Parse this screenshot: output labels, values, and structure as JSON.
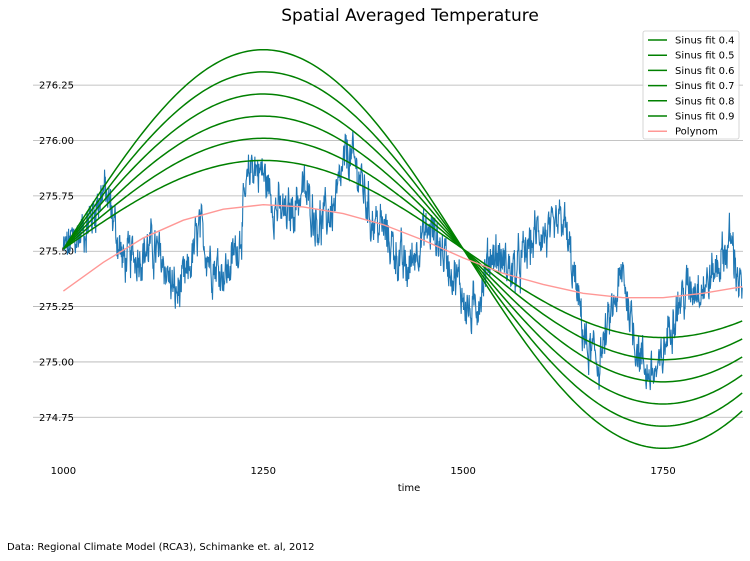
{
  "chart_data": {
    "type": "line",
    "title": "Spatial Averaged Temperature",
    "xlabel": "time",
    "ylabel": "",
    "xlim": [
      962,
      1850
    ],
    "ylim": [
      274.53,
      276.49
    ],
    "xticks": [
      1000,
      1250,
      1500,
      1750
    ],
    "yticks": [
      274.75,
      275.0,
      275.25,
      275.5,
      275.75,
      276.0,
      276.25
    ],
    "ytick_labels": [
      "274.75",
      "275.00",
      "275.25",
      "275.50",
      "275.75",
      "276.00",
      "276.25"
    ],
    "grid": "horizontal",
    "legend_position": "top-right",
    "colors": {
      "data": "#1f77b4",
      "sinus": "#008000",
      "polynom": "#ff9896",
      "grid": "#b0b0b0"
    },
    "observed": {
      "x_range": [
        1000,
        1849
      ],
      "keypoints": [
        [
          1000,
          275.5
        ],
        [
          1030,
          275.62
        ],
        [
          1050,
          275.78
        ],
        [
          1060,
          275.68
        ],
        [
          1075,
          275.45
        ],
        [
          1090,
          275.48
        ],
        [
          1110,
          275.52
        ],
        [
          1125,
          275.45
        ],
        [
          1140,
          275.3
        ],
        [
          1155,
          275.38
        ],
        [
          1170,
          275.6
        ],
        [
          1185,
          275.45
        ],
        [
          1205,
          275.4
        ],
        [
          1220,
          275.55
        ],
        [
          1235,
          275.9
        ],
        [
          1250,
          275.85
        ],
        [
          1265,
          275.7
        ],
        [
          1280,
          275.65
        ],
        [
          1300,
          275.78
        ],
        [
          1320,
          275.62
        ],
        [
          1340,
          275.7
        ],
        [
          1355,
          275.95
        ],
        [
          1370,
          275.85
        ],
        [
          1385,
          275.65
        ],
        [
          1400,
          275.6
        ],
        [
          1415,
          275.5
        ],
        [
          1430,
          275.4
        ],
        [
          1445,
          275.55
        ],
        [
          1460,
          275.6
        ],
        [
          1475,
          275.5
        ],
        [
          1495,
          275.35
        ],
        [
          1510,
          275.2
        ],
        [
          1520,
          275.3
        ],
        [
          1535,
          275.5
        ],
        [
          1550,
          275.45
        ],
        [
          1565,
          275.4
        ],
        [
          1580,
          275.5
        ],
        [
          1595,
          275.6
        ],
        [
          1610,
          275.55
        ],
        [
          1625,
          275.65
        ],
        [
          1640,
          275.35
        ],
        [
          1655,
          275.05
        ],
        [
          1670,
          275.0
        ],
        [
          1685,
          275.2
        ],
        [
          1700,
          275.4
        ],
        [
          1715,
          275.1
        ],
        [
          1730,
          274.95
        ],
        [
          1745,
          274.95
        ],
        [
          1760,
          275.2
        ],
        [
          1775,
          275.3
        ],
        [
          1790,
          275.35
        ],
        [
          1805,
          275.35
        ],
        [
          1820,
          275.45
        ],
        [
          1835,
          275.55
        ],
        [
          1849,
          275.3
        ]
      ]
    },
    "series": [
      {
        "name": "Sinus fit 0.4",
        "amplitude": 0.4,
        "center": 275.51,
        "x_start": 1000,
        "x_end": 1849
      },
      {
        "name": "Sinus fit 0.5",
        "amplitude": 0.5,
        "center": 275.51,
        "x_start": 1000,
        "x_end": 1849
      },
      {
        "name": "Sinus fit 0.6",
        "amplitude": 0.6,
        "center": 275.51,
        "x_start": 1000,
        "x_end": 1849
      },
      {
        "name": "Sinus fit 0.7",
        "amplitude": 0.7,
        "center": 275.51,
        "x_start": 1000,
        "x_end": 1849
      },
      {
        "name": "Sinus fit 0.8",
        "amplitude": 0.8,
        "center": 275.51,
        "x_start": 1000,
        "x_end": 1849
      },
      {
        "name": "Sinus fit 0.9",
        "amplitude": 0.9,
        "center": 275.51,
        "x_start": 1000,
        "x_end": 1849
      },
      {
        "name": "Polynom",
        "points": [
          [
            1000,
            275.32
          ],
          [
            1050,
            275.45
          ],
          [
            1100,
            275.56
          ],
          [
            1150,
            275.64
          ],
          [
            1200,
            275.69
          ],
          [
            1250,
            275.71
          ],
          [
            1300,
            275.7
          ],
          [
            1350,
            275.67
          ],
          [
            1400,
            275.62
          ],
          [
            1450,
            275.55
          ],
          [
            1500,
            275.47
          ],
          [
            1550,
            275.4
          ],
          [
            1600,
            275.35
          ],
          [
            1650,
            275.31
          ],
          [
            1700,
            275.29
          ],
          [
            1750,
            275.29
          ],
          [
            1800,
            275.31
          ],
          [
            1849,
            275.34
          ]
        ]
      }
    ]
  },
  "caption": "Data: Regional Climate Model (RCA3), Schimanke et. al, 2012"
}
